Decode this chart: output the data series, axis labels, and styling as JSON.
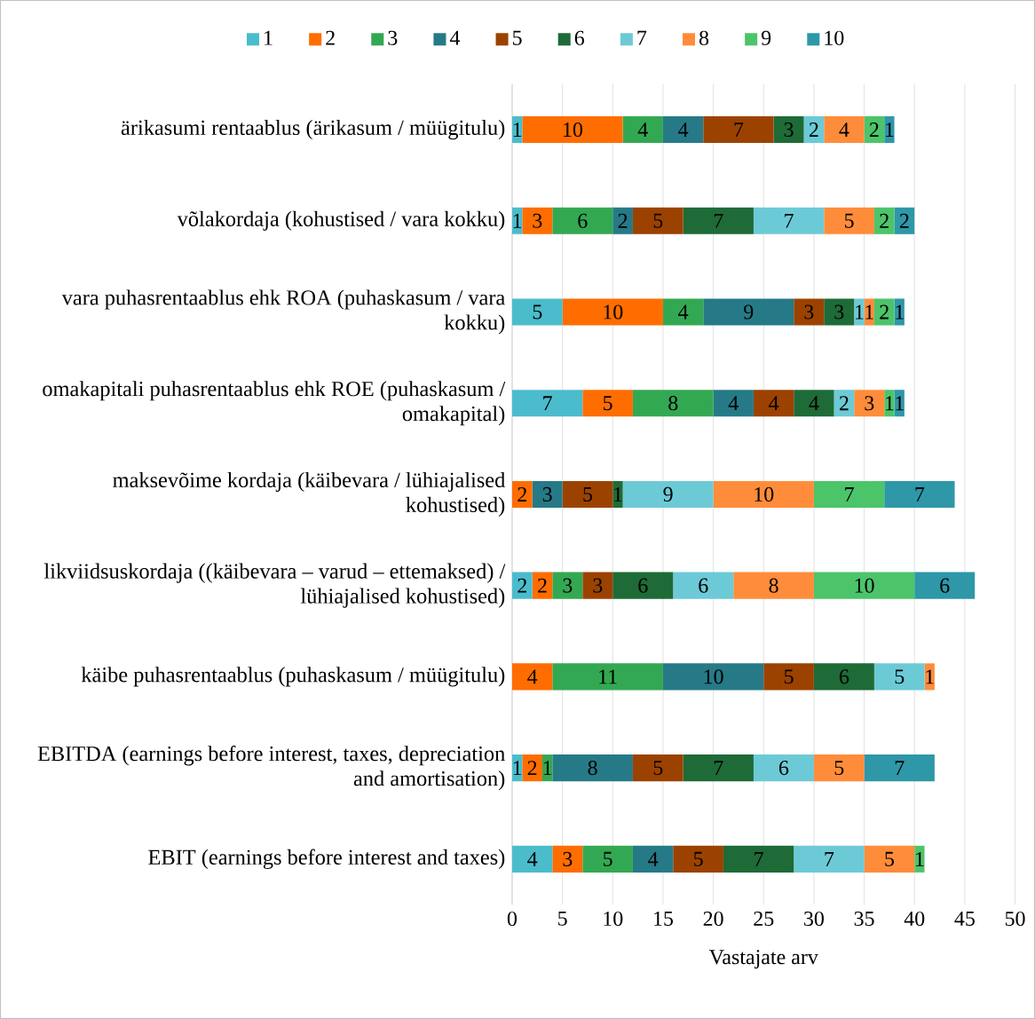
{
  "chart_data": {
    "type": "bar",
    "orientation": "horizontal",
    "stacked": true,
    "xlabel": "Vastajate arv",
    "categories": [
      "ärikasumi rentaablus (ärikasum / müügitulu)",
      "võlakordaja (kohustised / vara kokku)",
      "vara puhasrentaablus ehk ROA (puhaskasum / vara kokku)",
      "omakapitali puhasrentaablus ehk ROE (puhaskasum / omakapital)",
      "maksevõime kordaja (käibevara / lühiajalised kohustised)",
      "likviidsuskordaja ((käibevara – varud – ettemaksed) / lühiajalised kohustised)",
      "käibe puhasrentaablus (puhaskasum / müügitulu)",
      "EBITDA (earnings before interest, taxes, depreciation and amortisation)",
      "EBIT (earnings before interest and taxes)"
    ],
    "series": [
      {
        "name": "1",
        "color": "#4bbccc",
        "values": [
          1,
          1,
          5,
          7,
          null,
          2,
          null,
          1,
          4
        ]
      },
      {
        "name": "2",
        "color": "#ff6d00",
        "values": [
          10,
          3,
          10,
          5,
          2,
          2,
          4,
          2,
          3
        ]
      },
      {
        "name": "3",
        "color": "#33a852",
        "values": [
          4,
          6,
          4,
          8,
          null,
          3,
          11,
          1,
          5
        ]
      },
      {
        "name": "4",
        "color": "#267a87",
        "values": [
          4,
          2,
          9,
          4,
          3,
          null,
          10,
          8,
          4
        ]
      },
      {
        "name": "5",
        "color": "#9c4200",
        "values": [
          7,
          5,
          3,
          4,
          5,
          3,
          5,
          5,
          5
        ]
      },
      {
        "name": "6",
        "color": "#1e6b37",
        "values": [
          3,
          7,
          3,
          4,
          1,
          6,
          6,
          7,
          7
        ]
      },
      {
        "name": "7",
        "color": "#6ccad6",
        "values": [
          2,
          7,
          1,
          2,
          9,
          6,
          5,
          6,
          7
        ]
      },
      {
        "name": "8",
        "color": "#ff8c3a",
        "values": [
          4,
          5,
          1,
          3,
          10,
          8,
          1,
          5,
          5
        ]
      },
      {
        "name": "9",
        "color": "#4cc46a",
        "values": [
          2,
          2,
          2,
          1,
          7,
          10,
          null,
          null,
          1
        ]
      },
      {
        "name": "10",
        "color": "#2e97a8",
        "values": [
          1,
          2,
          1,
          1,
          7,
          6,
          null,
          7,
          null
        ]
      }
    ],
    "xlim": [
      0,
      50
    ],
    "xticks": [
      0,
      5,
      10,
      15,
      20,
      25,
      30,
      35,
      40,
      45,
      50
    ],
    "grid": "x",
    "legend": "top",
    "data_labels": true
  }
}
